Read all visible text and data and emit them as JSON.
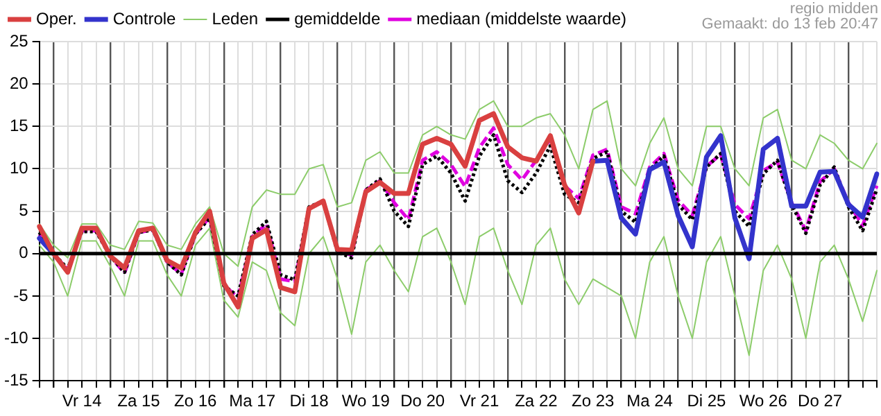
{
  "chart_data": {
    "type": "line",
    "annotations": [
      "regio midden",
      "Gemaakt: do 13 feb 20:47"
    ],
    "categories": [
      null,
      null,
      null,
      "Vr 14",
      null,
      null,
      null,
      "Za 15",
      null,
      null,
      null,
      "Zo 16",
      null,
      null,
      null,
      "Ma 17",
      null,
      null,
      null,
      "Di 18",
      null,
      null,
      null,
      "Wo 19",
      null,
      null,
      null,
      "Do 20",
      null,
      null,
      null,
      "Vr 21",
      null,
      null,
      null,
      "Za 22",
      null,
      null,
      null,
      "Zo 23",
      null,
      null,
      null,
      "Ma 24",
      null,
      null,
      null,
      "Di 25",
      null,
      null,
      null,
      "Wo 26",
      null,
      null,
      null,
      "Do 27",
      null,
      null,
      null,
      null
    ],
    "ylim": [
      -15,
      25
    ],
    "yticks": [
      -15,
      -10,
      -5,
      0,
      5,
      10,
      15,
      20,
      25
    ],
    "grid": true,
    "legend": "top",
    "marker": "none",
    "ref_lines": [
      {
        "axis": "y",
        "value": 0,
        "color": "#000000"
      }
    ],
    "series": [
      {
        "name": "Oper.",
        "color": "#d94040",
        "line_style": "solid",
        "values": [
          3.2,
          0,
          -2.2,
          3,
          3,
          -0.3,
          -1.7,
          2.7,
          3,
          -0.8,
          -1.7,
          2.5,
          5,
          -3.5,
          -6.3,
          1.8,
          2.8,
          -4,
          -4.5,
          5.3,
          6.2,
          0.5,
          0.4,
          7.3,
          8.4,
          7.1,
          7.1,
          12.9,
          13.6,
          12.9,
          10.3,
          15.7,
          16.5,
          12.6,
          11.3,
          10.9,
          13.9,
          8.1,
          4.8,
          10.9,
          null,
          null,
          null,
          null,
          null,
          null,
          null,
          null,
          null,
          null,
          null,
          null,
          null,
          null,
          null,
          null,
          null,
          null,
          null,
          null
        ]
      },
      {
        "name": "Controle",
        "color": "#3333cc",
        "line_style": "solid",
        "values": [
          1.8,
          0,
          null,
          null,
          null,
          null,
          null,
          null,
          null,
          null,
          null,
          null,
          null,
          null,
          null,
          null,
          null,
          null,
          null,
          null,
          null,
          null,
          null,
          null,
          null,
          null,
          null,
          null,
          null,
          null,
          null,
          null,
          null,
          null,
          null,
          null,
          null,
          null,
          null,
          10.9,
          11,
          4.2,
          2.3,
          9.9,
          10.8,
          4.5,
          0.8,
          11.4,
          13.9,
          4.2,
          -0.6,
          12.3,
          13.6,
          5.6,
          5.6,
          9.6,
          9.7,
          5.8,
          4.3,
          9.4
        ]
      },
      {
        "name": "Leden",
        "color": "#8ccc6a",
        "line_style": "solid",
        "values": [
          3.5,
          1,
          -0.5,
          3.5,
          3.5,
          1,
          0.5,
          3.8,
          3.6,
          1,
          0.5,
          3.5,
          5.5,
          0,
          -1.5,
          5.5,
          7.5,
          7,
          7,
          10,
          10.5,
          5.5,
          6,
          11,
          12,
          9.5,
          9.5,
          14,
          15,
          14,
          13.5,
          17,
          18,
          15,
          15,
          16,
          16.5,
          14,
          10,
          17,
          18,
          10,
          8,
          13,
          16,
          10,
          8,
          15,
          15,
          10,
          8,
          16,
          17,
          11,
          10,
          14,
          13,
          11,
          10,
          13
        ]
      },
      {
        "color": "#8ccc6a",
        "line_style": "solid",
        "values": [
          1,
          -1,
          -5,
          1.5,
          1.5,
          -1.5,
          -5,
          1.5,
          1.5,
          -2.5,
          -5,
          1,
          3,
          -5.5,
          -7.5,
          -1,
          -2,
          -7,
          -8.5,
          0,
          2,
          -3,
          -9.5,
          -1,
          1,
          -2,
          -4.5,
          2,
          3,
          -1,
          -6,
          2,
          3,
          -2,
          -6,
          1,
          3,
          -3,
          -6,
          -3,
          -4,
          -5,
          -10,
          -1,
          2,
          -5,
          -10,
          -1,
          2,
          -5,
          -12,
          -2,
          1,
          -3,
          -10,
          -1,
          1,
          -3,
          -8,
          -2
        ]
      },
      {
        "name": "gemiddelde",
        "color": "#000000",
        "line_style": "dotted",
        "values": [
          2.5,
          0,
          -1.8,
          2.6,
          2.6,
          -0.3,
          -2.2,
          2.5,
          2.8,
          -1,
          -2.5,
          2.3,
          4.2,
          -3.8,
          -5,
          2.2,
          3.8,
          -2.5,
          -3.1,
          5.5,
          6.2,
          0.2,
          -0.5,
          7.5,
          8.8,
          5,
          3.2,
          10.5,
          11.5,
          9.5,
          6.2,
          11.5,
          14,
          8.6,
          7.2,
          9.5,
          12.7,
          7,
          6,
          11.2,
          12,
          5,
          3.7,
          9.9,
          11.5,
          5.8,
          4,
          10.2,
          11.8,
          5,
          3.2,
          9.4,
          11,
          5.8,
          2.4,
          8.1,
          10.2,
          5.5,
          2.7,
          7.6
        ]
      },
      {
        "name": "mediaan (middelste waarde)",
        "color": "#e000e0",
        "line_style": "dashed",
        "values": [
          2.3,
          0,
          -1.9,
          2.7,
          2.7,
          -0.3,
          -2.3,
          2.5,
          2.8,
          -1,
          -2.4,
          2.3,
          4.3,
          -3.7,
          -5.2,
          2,
          3.5,
          -3,
          -3.3,
          5.4,
          6.2,
          0.4,
          -0.2,
          7.5,
          8.6,
          6,
          4,
          11,
          12,
          10.5,
          7.9,
          12.5,
          14.8,
          10.5,
          8.7,
          11,
          13.5,
          8,
          6.5,
          11.6,
          12.3,
          5.5,
          4.7,
          10.2,
          11.8,
          6.3,
          4.5,
          10.3,
          11.7,
          5.8,
          4.1,
          9.8,
          10.8,
          6,
          2.7,
          8.5,
          10,
          6,
          3.3,
          8
        ]
      }
    ]
  }
}
